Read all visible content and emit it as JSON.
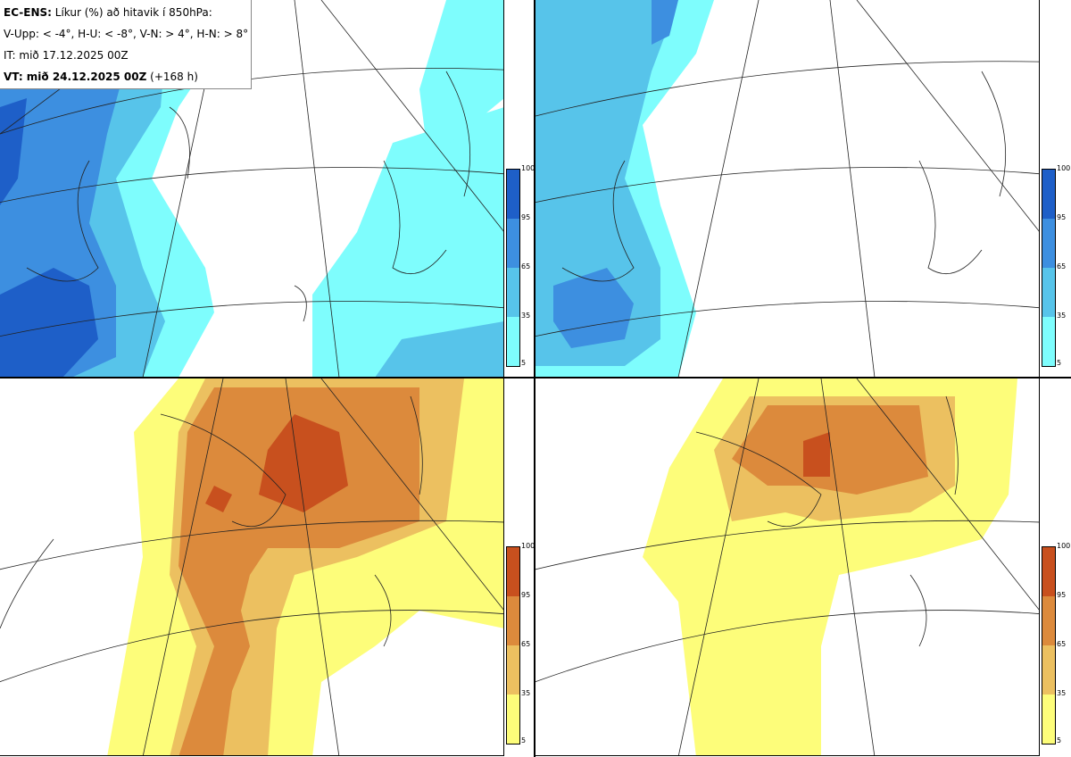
{
  "info": {
    "model": "EC-ENS:",
    "title": "Líkur (%) að hitavik í 850hPa:",
    "legend_line": "V-Upp: < -4°, H-U: < -8°, V-N: > 4°, H-N: > 8°",
    "it_line": "IT: mið 17.12.2025 00Z",
    "vt_bold": "VT: mið 24.12.2025 00Z",
    "vt_rest": "(+168 h)"
  },
  "colorbars": {
    "ticks": [
      "100",
      "95",
      "65",
      "35",
      "5"
    ],
    "blue": {
      "colors": [
        "#1e5fc8",
        "#3d8fe0",
        "#57c4ea",
        "#7efdfd"
      ]
    },
    "orange": {
      "colors": [
        "#c8501e",
        "#dc8a3c",
        "#ecc060",
        "#fdfd7a"
      ]
    }
  },
  "panels": [
    {
      "name": "upper-left",
      "quantity": "V-Upp < -4°"
    },
    {
      "name": "upper-right",
      "quantity": "H-U < -8°"
    },
    {
      "name": "lower-left",
      "quantity": "V-N > 4°"
    },
    {
      "name": "lower-right",
      "quantity": "H-N > 8°"
    }
  ]
}
